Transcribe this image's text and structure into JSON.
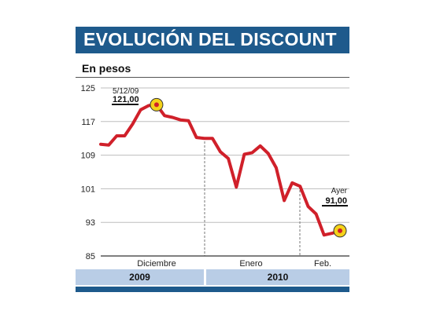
{
  "title": "EVOLUCIÓN DEL DISCOUNT",
  "subtitle": "En pesos",
  "colors": {
    "header": "#1e5a8c",
    "line": "#d0202a",
    "marker": "#f4d21a",
    "year_band": "#b9cde6",
    "grid": "#bdbdbd"
  },
  "years": [
    "2009",
    "2010"
  ],
  "chart_data": {
    "type": "line",
    "title": "EVOLUCIÓN DEL DISCOUNT",
    "ylabel": "En pesos",
    "ylim": [
      85,
      125
    ],
    "yticks": [
      125,
      117,
      109,
      101,
      93,
      85
    ],
    "grid": true,
    "months": [
      "Diciembre",
      "Enero",
      "Feb."
    ],
    "series": [
      {
        "values": [
          111.6,
          111.4,
          113.6,
          113.6,
          116.4,
          119.8,
          120.8,
          121.0,
          118.4,
          118.0,
          117.4,
          117.2,
          113.2,
          113.0,
          113.0,
          109.8,
          108.2,
          101.4,
          109.2,
          109.6,
          111.2,
          109.4,
          106.0,
          98.2,
          102.4,
          101.6,
          96.8,
          95.0,
          90.0,
          90.4,
          91.0
        ]
      }
    ],
    "annotations": [
      {
        "date": "5/12/09",
        "value": "121,00"
      },
      {
        "date": "Ayer",
        "value": "91,00"
      }
    ]
  }
}
